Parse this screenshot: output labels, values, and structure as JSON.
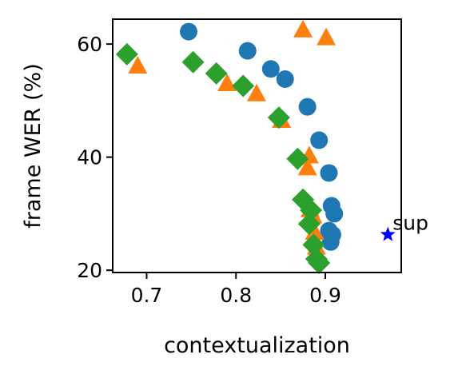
{
  "chart_data": {
    "type": "scatter",
    "xlabel": "contextualization",
    "ylabel": "frame WER (%)",
    "xlim": [
      0.662,
      0.985
    ],
    "ylim": [
      19.6,
      64.4
    ],
    "xticks": [
      0.7,
      0.8,
      0.9
    ],
    "xtick_labels": [
      "0.7",
      "0.8",
      "0.9"
    ],
    "yticks": [
      20,
      40,
      60
    ],
    "ytick_labels": [
      "20",
      "40",
      "60"
    ],
    "grid": false,
    "series": [
      {
        "marker": "circle",
        "color": "#1f77b4",
        "points": [
          [
            0.747,
            62.2
          ],
          [
            0.813,
            58.8
          ],
          [
            0.839,
            55.6
          ],
          [
            0.855,
            53.8
          ],
          [
            0.88,
            48.9
          ],
          [
            0.893,
            43.0
          ],
          [
            0.904,
            37.2
          ],
          [
            0.907,
            31.4
          ],
          [
            0.91,
            30.0
          ],
          [
            0.904,
            27.0
          ],
          [
            0.908,
            26.3
          ],
          [
            0.906,
            25.0
          ]
        ]
      },
      {
        "marker": "triangle",
        "color": "#ff7f0e",
        "points": [
          [
            0.69,
            56.2
          ],
          [
            0.79,
            53.1
          ],
          [
            0.823,
            51.3
          ],
          [
            0.851,
            46.6
          ],
          [
            0.875,
            62.6
          ],
          [
            0.901,
            61.2
          ],
          [
            0.882,
            40.3
          ],
          [
            0.88,
            38.2
          ],
          [
            0.883,
            30.8
          ],
          [
            0.886,
            29.7
          ],
          [
            0.888,
            26.8
          ],
          [
            0.89,
            24.2
          ]
        ]
      },
      {
        "marker": "diamond",
        "color": "#2ca02c",
        "points": [
          [
            0.678,
            58.2
          ],
          [
            0.752,
            56.8
          ],
          [
            0.778,
            54.8
          ],
          [
            0.808,
            52.6
          ],
          [
            0.848,
            47.0
          ],
          [
            0.869,
            39.7
          ],
          [
            0.875,
            32.5
          ],
          [
            0.884,
            30.6
          ],
          [
            0.882,
            28.2
          ],
          [
            0.887,
            24.5
          ],
          [
            0.89,
            22.0
          ],
          [
            0.893,
            21.3
          ]
        ]
      },
      {
        "marker": "star",
        "color": "#0000ff",
        "points": [
          [
            0.97,
            26.3
          ]
        ],
        "annotation": "sup"
      }
    ]
  }
}
